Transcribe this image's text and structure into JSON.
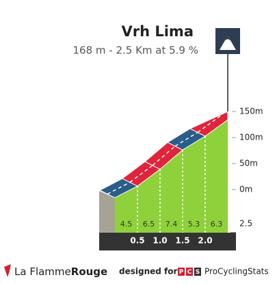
{
  "chart_data": {
    "type": "profile",
    "title": "Vrh Lima",
    "subtitle": "168 m - 2.5 Km at 5.9 %",
    "xlim": [
      0,
      2.5
    ],
    "xticks": [
      0.5,
      {
        "value": 1,
        "label": "1.0"
      },
      1.5,
      {
        "value": 2,
        "label": "2.0"
      },
      2.5
    ],
    "values": [
      4.5,
      6.5,
      7.4,
      5.3,
      6.3
    ],
    "segment_colors": [
      "#2a5d8a",
      "#e0243c",
      "#e0243c",
      "#2a5d8a",
      "#e0243c"
    ],
    "face_color": "#8fd13a",
    "ylim": [
      -20,
      160
    ],
    "yticks": [
      {
        "value": 0,
        "label": "0m"
      },
      {
        "value": 50,
        "label": "50m"
      },
      {
        "value": 100,
        "label": "100m"
      },
      {
        "value": 150,
        "label": "150m"
      }
    ]
  },
  "footer": {
    "brand_light": "La Flamme",
    "brand_bold": "Rouge",
    "designed_for": "designed for",
    "logo_letters": [
      "P",
      "C",
      "S"
    ],
    "site": "ProCyclingStats"
  }
}
